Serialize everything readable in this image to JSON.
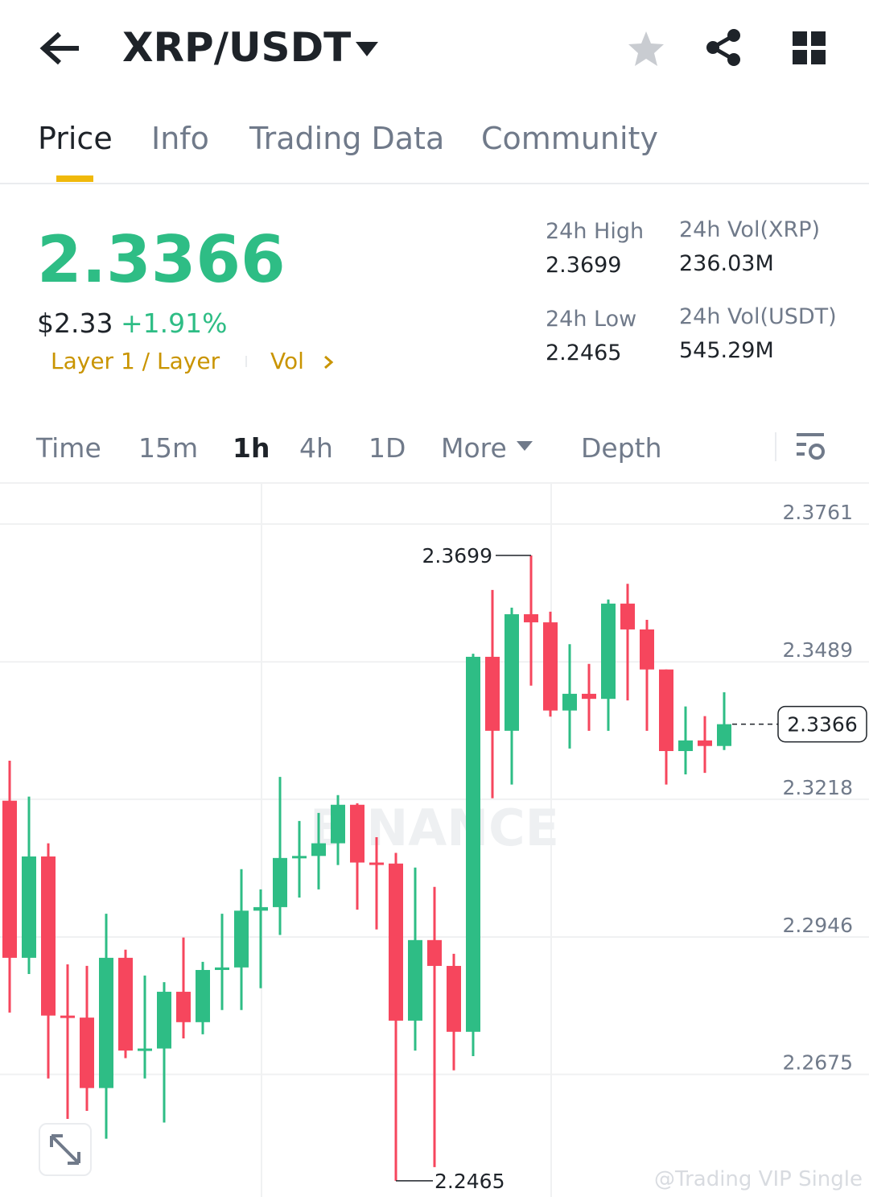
{
  "header": {
    "title": "XRP/USDT"
  },
  "tabs": [
    "Price",
    "Info",
    "Trading Data",
    "Community"
  ],
  "ticker": {
    "last": "2.3366",
    "fiat": "$2.33",
    "change": "+1.91%",
    "tags": [
      "Layer 1 / Layer",
      "Vol"
    ]
  },
  "stats": [
    {
      "label": "24h High",
      "value": "2.3699"
    },
    {
      "label": "24h Vol(XRP)",
      "value": "236.03M"
    },
    {
      "label": "24h Low",
      "value": "2.2465"
    },
    {
      "label": "24h Vol(USDT)",
      "value": "545.29M"
    }
  ],
  "intervals": [
    "Time",
    "15m",
    "1h",
    "4h",
    "1D",
    "More",
    "Depth"
  ],
  "chart_data": {
    "type": "candlestick",
    "watermark": "BINANCE",
    "credit": "@Trading VIP Single",
    "up_color": "#2ebd85",
    "down_color": "#f6465d",
    "ylim": [
      2.2433,
      2.3842
    ],
    "yticks": [
      2.3761,
      2.3489,
      2.3218,
      2.2946,
      2.2675
    ],
    "grid": true,
    "open": [
      2.3215,
      2.2905,
      2.3105,
      2.2791,
      2.2787,
      2.2648,
      2.2905,
      2.2722,
      2.2726,
      2.2838,
      2.2778,
      2.2881,
      2.2886,
      2.2998,
      2.3005,
      2.3102,
      2.3106,
      2.3131,
      2.3207,
      2.3093,
      2.3091,
      2.2781,
      2.294,
      2.2889,
      2.2759,
      2.3499,
      2.3353,
      2.3583,
      2.3567,
      2.3393,
      2.3426,
      2.3416,
      2.3604,
      2.3553,
      2.3474,
      2.3313,
      2.3334,
      2.3323
    ],
    "high": [
      2.3294,
      2.3223,
      2.3131,
      2.2892,
      2.2889,
      2.2992,
      2.2921,
      2.287,
      2.2857,
      2.2945,
      2.2897,
      2.2992,
      2.308,
      2.304,
      2.3262,
      2.3175,
      2.3191,
      2.3226,
      2.321,
      2.3143,
      2.3112,
      2.3083,
      2.3045,
      2.2913,
      2.3505,
      2.3631,
      2.3596,
      2.3699,
      2.3588,
      2.3524,
      2.3485,
      2.3612,
      2.3643,
      2.3572,
      2.3474,
      2.3401,
      2.3382,
      2.3429
    ],
    "low": [
      2.2797,
      2.2873,
      2.2667,
      2.2587,
      2.2603,
      2.2548,
      2.2707,
      2.2667,
      2.258,
      2.2746,
      2.2754,
      2.2802,
      2.2802,
      2.2845,
      2.295,
      2.3024,
      2.304,
      2.3088,
      2.3,
      2.2961,
      2.2465,
      2.2722,
      2.2492,
      2.2683,
      2.2711,
      2.322,
      2.3247,
      2.3442,
      2.3381,
      2.3318,
      2.3353,
      2.3353,
      2.3413,
      2.3353,
      2.3247,
      2.3267,
      2.327,
      2.3315
    ],
    "close": [
      2.2905,
      2.3105,
      2.2791,
      2.2787,
      2.2648,
      2.2905,
      2.2722,
      2.2726,
      2.2838,
      2.2778,
      2.2881,
      2.2886,
      2.2998,
      2.3005,
      2.3102,
      2.3106,
      2.3131,
      2.3207,
      2.3093,
      2.3091,
      2.2781,
      2.294,
      2.2889,
      2.2759,
      2.3499,
      2.3353,
      2.3583,
      2.3567,
      2.3393,
      2.3426,
      2.3416,
      2.3604,
      2.3553,
      2.3474,
      2.3313,
      2.3334,
      2.3323,
      2.3366
    ],
    "annotations": [
      {
        "label": "2.3699",
        "value": 2.3699
      },
      {
        "label": "2.2465",
        "value": 2.2465
      }
    ],
    "last_price": {
      "label": "2.3366",
      "value": 2.3366
    }
  }
}
